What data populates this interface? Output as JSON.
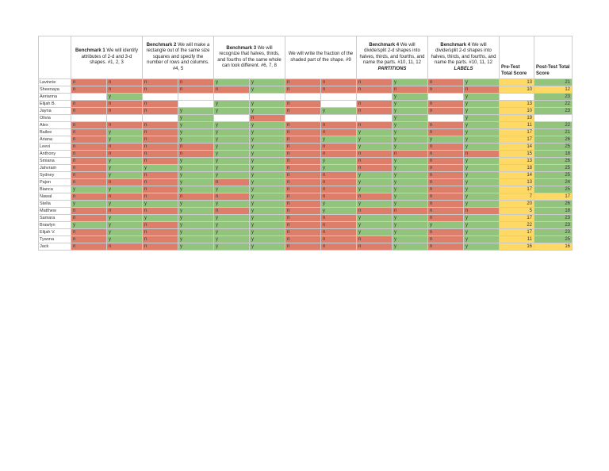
{
  "colors": {
    "yes_bg": "#93c47d",
    "no_bg": "#dd7e6b",
    "pre_bg": "#ffd966",
    "post_green_bg": "#93c47d",
    "post_yellow_bg": "#ffd966",
    "grid_line": "#cccccc"
  },
  "table": {
    "sections": [
      {
        "title": "Benchmark 1",
        "desc": "We will identify attributes of 2-d and 3-d shapes.  #1, 2, 3",
        "tag": ""
      },
      {
        "title": "Benchmark 2",
        "desc": "We will make a rectangle out of the same size squares and specify the number of rows and columns.  #4, 5",
        "tag": ""
      },
      {
        "title": "Benchmark 3",
        "desc": "We will recognize that halves, thirds, and fourths of the same whole can look different.  #6, 7, 8",
        "tag": ""
      },
      {
        "title": "",
        "desc": "We will write the fraction of the shaded part of the shape.  #9",
        "tag": ""
      },
      {
        "title": "Benchmark 4",
        "desc": "We will divide/split 2-d shapes into halves, thirds, and fourths, and name the parts.  #10, 11, 12",
        "tag": "PARTITIONS"
      },
      {
        "title": "Benchmark 4",
        "desc": "We will divide/split 2-d shapes into halves, thirds, and fourths, and name the parts.  #10, 11, 12",
        "tag": "LABELS"
      }
    ],
    "pre_header": "Pre-Test Total Score",
    "post_header": "Post-Test Total Score",
    "students": [
      {
        "name": "Lavinnie",
        "cells": [
          "n",
          "n",
          "n",
          "n",
          "y",
          "y",
          "n",
          "n",
          "n",
          "y",
          "n",
          "y"
        ],
        "pre": "13",
        "pre_color": "yellow",
        "post": "21",
        "post_color": "green"
      },
      {
        "name": "Sheenaya",
        "cells": [
          "n",
          "n",
          "n",
          "n",
          "n",
          "y",
          "n",
          "n",
          "n",
          "n",
          "n",
          "n"
        ],
        "pre": "10",
        "pre_color": "yellow",
        "post": "12",
        "post_color": "yellow"
      },
      {
        "name": "Aerianna",
        "cells": [
          "",
          "y",
          "",
          "",
          "",
          "",
          "",
          "",
          "",
          "y",
          "",
          "y"
        ],
        "pre": "",
        "pre_color": "",
        "post": "23",
        "post_color": "green"
      },
      {
        "name": "Elijah B.",
        "cells": [
          "n",
          "n",
          "n",
          "",
          "y",
          "y",
          "n",
          "",
          "n",
          "y",
          "n",
          "y"
        ],
        "pre": "13",
        "pre_color": "yellow",
        "post": "22",
        "post_color": "green"
      },
      {
        "name": "Jayna",
        "cells": [
          "n",
          "n",
          "n",
          "y",
          "y",
          "y",
          "n",
          "y",
          "n",
          "y",
          "n",
          "y"
        ],
        "pre": "10",
        "pre_color": "yellow",
        "post": "23",
        "post_color": "green"
      },
      {
        "name": "Olivia",
        "cells": [
          "",
          "",
          "",
          "y",
          "",
          "n",
          "",
          "",
          "",
          "y",
          "",
          "y"
        ],
        "pre": "19",
        "pre_color": "yellow",
        "post": "",
        "post_color": ""
      },
      {
        "name": "Alex",
        "cells": [
          "n",
          "n",
          "n",
          "y",
          "y",
          "y",
          "n",
          "n",
          "n",
          "y",
          "n",
          "y"
        ],
        "pre": "11",
        "pre_color": "yellow",
        "post": "22",
        "post_color": "green"
      },
      {
        "name": "Bailee",
        "cells": [
          "n",
          "y",
          "n",
          "y",
          "y",
          "y",
          "n",
          "n",
          "y",
          "y",
          "n",
          "y"
        ],
        "pre": "17",
        "pre_color": "yellow",
        "post": "21",
        "post_color": "green"
      },
      {
        "name": "Ariana",
        "cells": [
          "n",
          "y",
          "n",
          "y",
          "y",
          "y",
          "n",
          "y",
          "y",
          "y",
          "y",
          "y"
        ],
        "pre": "17",
        "pre_color": "yellow",
        "post": "26",
        "post_color": "green"
      },
      {
        "name": "Leevi",
        "cells": [
          "n",
          "n",
          "n",
          "n",
          "y",
          "y",
          "n",
          "n",
          "y",
          "y",
          "n",
          "y"
        ],
        "pre": "14",
        "pre_color": "yellow",
        "post": "25",
        "post_color": "green"
      },
      {
        "name": "Anthony",
        "cells": [
          "n",
          "n",
          "n",
          "n",
          "y",
          "y",
          "n",
          "n",
          "n",
          "n",
          "n",
          "n"
        ],
        "pre": "15",
        "pre_color": "yellow",
        "post": "18",
        "post_color": "green"
      },
      {
        "name": "Smiana",
        "cells": [
          "n",
          "y",
          "n",
          "y",
          "y",
          "y",
          "n",
          "y",
          "n",
          "y",
          "n",
          "y"
        ],
        "pre": "13",
        "pre_color": "yellow",
        "post": "26",
        "post_color": "green"
      },
      {
        "name": "Jahvram",
        "cells": [
          "n",
          "y",
          "y",
          "y",
          "y",
          "y",
          "n",
          "y",
          "n",
          "y",
          "n",
          "y"
        ],
        "pre": "18",
        "pre_color": "yellow",
        "post": "25",
        "post_color": "green"
      },
      {
        "name": "Sydney",
        "cells": [
          "n",
          "y",
          "n",
          "y",
          "y",
          "y",
          "n",
          "n",
          "y",
          "y",
          "n",
          "y"
        ],
        "pre": "14",
        "pre_color": "yellow",
        "post": "25",
        "post_color": "green"
      },
      {
        "name": "Pajon",
        "cells": [
          "n",
          "n",
          "n",
          "y",
          "n",
          "y",
          "n",
          "n",
          "y",
          "y",
          "n",
          "y"
        ],
        "pre": "13",
        "pre_color": "yellow",
        "post": "24",
        "post_color": "green"
      },
      {
        "name": "Bianca",
        "cells": [
          "y",
          "y",
          "n",
          "y",
          "y",
          "y",
          "n",
          "n",
          "y",
          "y",
          "n",
          "y"
        ],
        "pre": "17",
        "pre_color": "yellow",
        "post": "25",
        "post_color": "green"
      },
      {
        "name": "Nawal",
        "cells": [
          "n",
          "n",
          "n",
          "n",
          "n",
          "y",
          "n",
          "n",
          "n",
          "y",
          "n",
          "y"
        ],
        "pre": "7",
        "pre_color": "yellow",
        "post": "17",
        "post_color": "yellow"
      },
      {
        "name": "Stella",
        "cells": [
          "y",
          "y",
          "y",
          "y",
          "y",
          "y",
          "n",
          "y",
          "y",
          "y",
          "n",
          "y"
        ],
        "pre": "20",
        "pre_color": "yellow",
        "post": "26",
        "post_color": "green"
      },
      {
        "name": "Matthew",
        "cells": [
          "n",
          "n",
          "n",
          "y",
          "n",
          "y",
          "n",
          "y",
          "n",
          "n",
          "n",
          "n"
        ],
        "pre": "5",
        "pre_color": "yellow",
        "post": "18",
        "post_color": "green"
      },
      {
        "name": "Samara",
        "cells": [
          "n",
          "y",
          "y",
          "y",
          "y",
          "y",
          "n",
          "n",
          "y",
          "y",
          "n",
          "y"
        ],
        "pre": "17",
        "pre_color": "yellow",
        "post": "23",
        "post_color": "green"
      },
      {
        "name": "Brawlyn",
        "cells": [
          "y",
          "y",
          "n",
          "y",
          "y",
          "y",
          "n",
          "n",
          "y",
          "y",
          "y",
          "y"
        ],
        "pre": "22",
        "pre_color": "yellow",
        "post": "23",
        "post_color": "green"
      },
      {
        "name": "Elijah V.",
        "cells": [
          "n",
          "y",
          "n",
          "y",
          "y",
          "y",
          "n",
          "n",
          "y",
          "y",
          "n",
          "y"
        ],
        "pre": "17",
        "pre_color": "yellow",
        "post": "23",
        "post_color": "green"
      },
      {
        "name": "Tyanna",
        "cells": [
          "n",
          "y",
          "n",
          "y",
          "y",
          "y",
          "n",
          "n",
          "n",
          "y",
          "n",
          "y"
        ],
        "pre": "11",
        "pre_color": "yellow",
        "post": "25",
        "post_color": "green"
      },
      {
        "name": "Jack",
        "cells": [
          "n",
          "n",
          "n",
          "y",
          "y",
          "y",
          "n",
          "n",
          "n",
          "y",
          "n",
          "y"
        ],
        "pre": "16",
        "pre_color": "yellow",
        "post": "16",
        "post_color": "yellow"
      }
    ]
  }
}
